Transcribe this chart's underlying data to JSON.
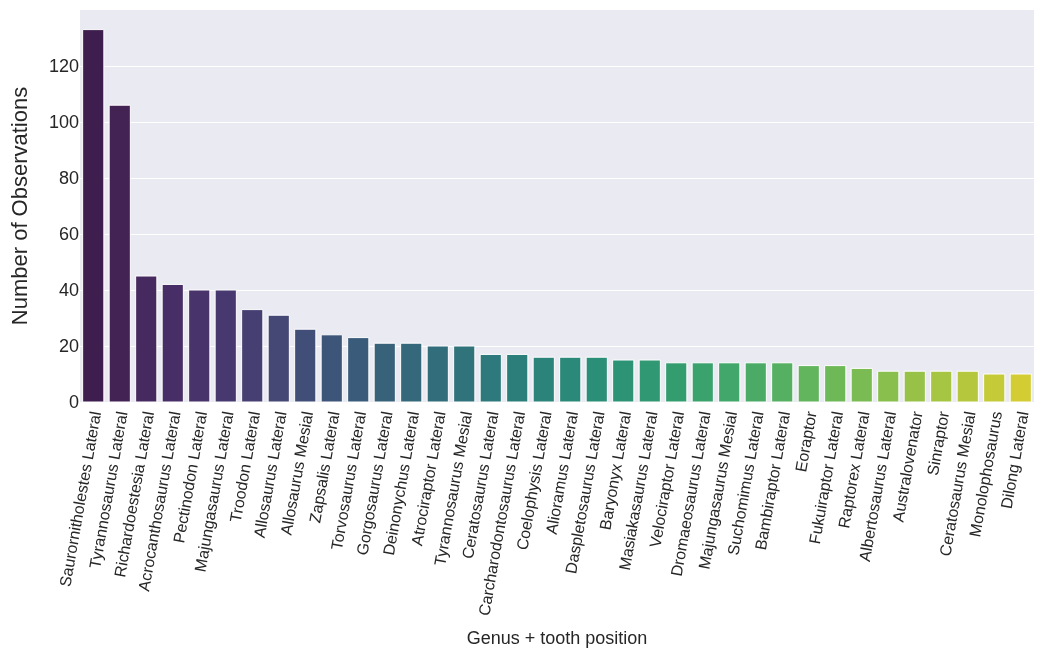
{
  "chart_data": {
    "type": "bar",
    "xlabel": "Genus + tooth position",
    "ylabel": "Number of Observations",
    "categories": [
      "Saurornitholestes Lateral",
      "Tyrannosaurus Lateral",
      "Richardoestesia Lateral",
      "Acrocanthosaurus Lateral",
      "Pectinodon Lateral",
      "Majungasaurus Lateral",
      "Troodon Lateral",
      "Allosaurus Lateral",
      "Allosaurus Mesial",
      "Zapsalis Lateral",
      "Torvosaurus Lateral",
      "Gorgosaurus Lateral",
      "Deinonychus Lateral",
      "Atrociraptor Lateral",
      "Tyrannosaurus Mesial",
      "Ceratosaurus Lateral",
      "Carcharodontosaurus Lateral",
      "Coelophysis Lateral",
      "Alioramus Lateral",
      "Daspletosaurus Lateral",
      "Baryonyx Lateral",
      "Masiakasaurus Lateral",
      "Velociraptor Lateral",
      "Dromaeosaurus Lateral",
      "Majungasaurus Mesial",
      "Suchomimus Lateral",
      "Bambiraptor Lateral",
      "Eoraptor",
      "Fukuiraptor Lateral",
      "Raptorex Lateral",
      "Albertosaurus Lateral",
      "Australovenator",
      "Sinraptor",
      "Ceratosaurus Mesial",
      "Monolophosaurus",
      "Dilong Lateral"
    ],
    "values": [
      133,
      106,
      45,
      42,
      40,
      40,
      33,
      31,
      26,
      24,
      23,
      21,
      21,
      20,
      20,
      17,
      17,
      16,
      16,
      16,
      15,
      15,
      14,
      14,
      14,
      14,
      14,
      13,
      13,
      12,
      11,
      11,
      11,
      11,
      10,
      10
    ],
    "colors": [
      "#3d1e4f",
      "#432354",
      "#46295e",
      "#472e66",
      "#48336b",
      "#47396f",
      "#463f72",
      "#454774",
      "#404e78",
      "#3d5578",
      "#3a5c7a",
      "#37627a",
      "#35687a",
      "#326d7b",
      "#30737b",
      "#2e797b",
      "#2c7e7a",
      "#2b837a",
      "#2a8979",
      "#2b8e77",
      "#2c9375",
      "#309873",
      "#349d70",
      "#3aa26d",
      "#42a76a",
      "#4bab66",
      "#56b062",
      "#62b45d",
      "#6eb858",
      "#7bbb53",
      "#89bf4d",
      "#97c247",
      "#a6c542",
      "#b5c83d",
      "#c4ca38",
      "#d3cd33"
    ],
    "ylim": [
      0,
      140
    ],
    "yticks": [
      0,
      20,
      40,
      60,
      80,
      100,
      120
    ],
    "grid": "y"
  }
}
